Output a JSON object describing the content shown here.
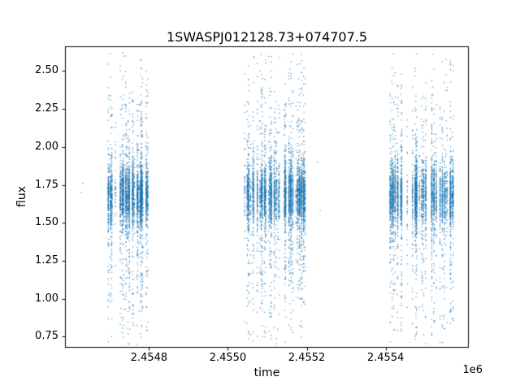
{
  "chart_data": {
    "type": "scatter",
    "title": "1SWASPJ012128.73+074707.5",
    "xlabel": "time",
    "ylabel": "flux",
    "x_offset_label": "1e6",
    "xlim": [
      2454588,
      2455610
    ],
    "ylim": [
      0.68,
      2.66
    ],
    "grid": false,
    "legend": "none",
    "xticks": [
      {
        "value": 2454800,
        "label": "2.4548"
      },
      {
        "value": 2455000,
        "label": "2.4550"
      },
      {
        "value": 2455200,
        "label": "2.4552"
      },
      {
        "value": 2455400,
        "label": "2.4554"
      }
    ],
    "yticks": [
      {
        "value": 0.75,
        "label": "0.75"
      },
      {
        "value": 1.0,
        "label": "1.00"
      },
      {
        "value": 1.25,
        "label": "1.25"
      },
      {
        "value": 1.5,
        "label": "1.50"
      },
      {
        "value": 1.75,
        "label": "1.75"
      },
      {
        "value": 2.0,
        "label": "2.00"
      },
      {
        "value": 2.25,
        "label": "2.25"
      },
      {
        "value": 2.5,
        "label": "2.50"
      }
    ],
    "marker": {
      "color": "#1f77b4",
      "size": 1.2,
      "alpha": 0.85
    },
    "series_model": {
      "description": "Three dense observing seasons of tiny scatter points forming vertical nightly stripes; dense flux core around 1.5-1.9 with sparse spread from about 0.70 up to 2.62",
      "clusters": [
        {
          "x_start": 2454690,
          "x_end": 2454806,
          "n_nights": 38,
          "points_min": 20,
          "points_max": 160
        },
        {
          "x_start": 2455040,
          "x_end": 2455196,
          "n_nights": 55,
          "points_min": 20,
          "points_max": 170
        },
        {
          "x_start": 2455410,
          "x_end": 2455572,
          "n_nights": 48,
          "points_min": 20,
          "points_max": 160
        }
      ],
      "flux_distribution": {
        "core_mean": 1.68,
        "core_sigma": 0.1,
        "core_weight": 0.72,
        "tail_mean": 1.6,
        "tail_sigma": 0.45,
        "min": 0.7,
        "max": 2.62
      },
      "outlier_points": [
        {
          "x": 2454629,
          "y": 1.7
        },
        {
          "x": 2454632,
          "y": 1.76
        },
        {
          "x": 2455227,
          "y": 1.9
        },
        {
          "x": 2455234,
          "y": 1.58
        }
      ]
    }
  }
}
